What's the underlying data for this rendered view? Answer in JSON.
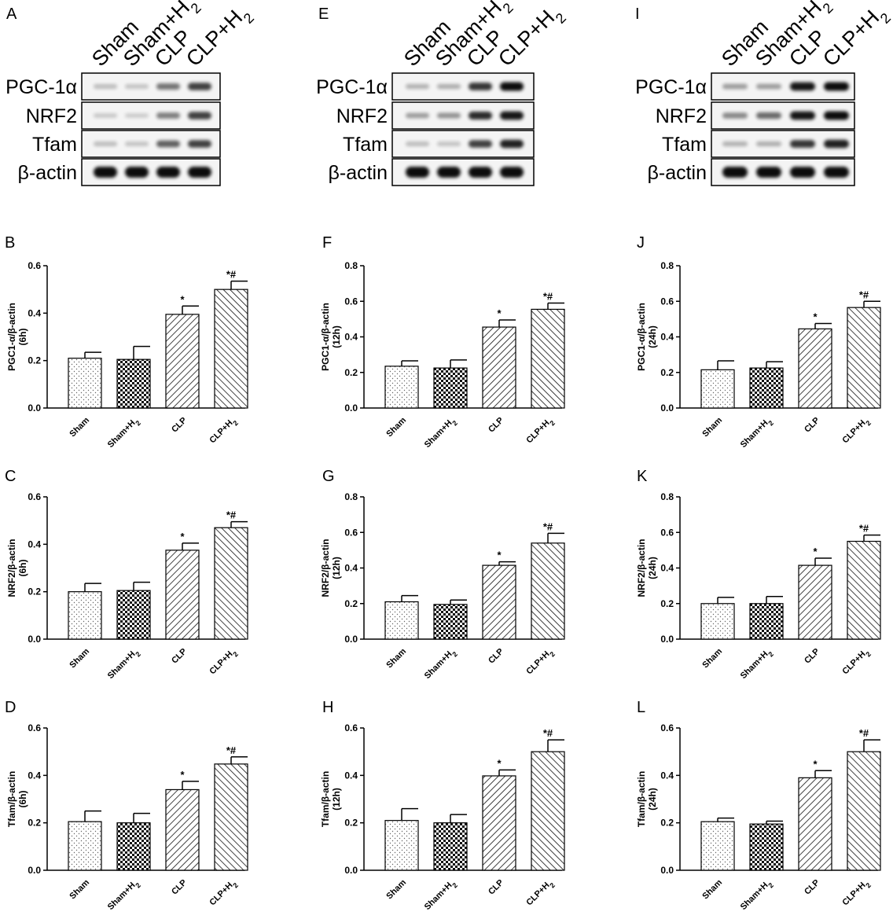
{
  "figure": {
    "blot_panels": [
      {
        "label": "A",
        "lanes": [
          "Sham",
          "Sham+H2",
          "CLP",
          "CLP+H2"
        ],
        "rows": [
          "PGC-1α",
          "NRF2",
          "Tfam",
          "β-actin"
        ],
        "band_intensity": [
          [
            0.15,
            0.12,
            0.5,
            0.75
          ],
          [
            0.1,
            0.08,
            0.45,
            0.75
          ],
          [
            0.15,
            0.12,
            0.6,
            0.75
          ],
          [
            1,
            1,
            1,
            1
          ]
        ]
      },
      {
        "label": "E",
        "lanes": [
          "Sham",
          "Sham+H2",
          "CLP",
          "CLP+H2"
        ],
        "rows": [
          "PGC-1α",
          "NRF2",
          "Tfam",
          "β-actin"
        ],
        "band_intensity": [
          [
            0.2,
            0.22,
            0.8,
            1
          ],
          [
            0.3,
            0.35,
            0.85,
            0.95
          ],
          [
            0.15,
            0.12,
            0.75,
            0.9
          ],
          [
            1,
            1,
            1,
            1
          ]
        ]
      },
      {
        "label": "I",
        "lanes": [
          "Sham",
          "Sham+H2",
          "CLP",
          "CLP+H2"
        ],
        "rows": [
          "PGC-1α",
          "NRF2",
          "Tfam",
          "β-actin"
        ],
        "band_intensity": [
          [
            0.3,
            0.3,
            0.95,
            1
          ],
          [
            0.4,
            0.55,
            0.95,
            1
          ],
          [
            0.2,
            0.22,
            0.8,
            0.9
          ],
          [
            1,
            1,
            1,
            1
          ]
        ]
      }
    ]
  },
  "chart_data": [
    {
      "panel": "B",
      "type": "bar",
      "categories": [
        "Sham",
        "Sham+H2",
        "CLP",
        "CLP+H2"
      ],
      "ylabel": "PGC1-α/β-actin (6h)",
      "ylim": [
        0,
        0.6
      ],
      "yticks": [
        "0.0",
        "0.2",
        "0.4",
        "0.6"
      ],
      "values": [
        0.21,
        0.205,
        0.395,
        0.5
      ],
      "errors": [
        0.025,
        0.055,
        0.035,
        0.035
      ],
      "significance": [
        "",
        "",
        "*",
        "*#"
      ]
    },
    {
      "panel": "C",
      "type": "bar",
      "categories": [
        "Sham",
        "Sham+H2",
        "CLP",
        "CLP+H2"
      ],
      "ylabel": "NRF2/β-actin (6h)",
      "ylim": [
        0,
        0.6
      ],
      "yticks": [
        "0.0",
        "0.2",
        "0.4",
        "0.6"
      ],
      "values": [
        0.2,
        0.205,
        0.375,
        0.47
      ],
      "errors": [
        0.035,
        0.035,
        0.03,
        0.025
      ],
      "significance": [
        "",
        "",
        "*",
        "*#"
      ]
    },
    {
      "panel": "D",
      "type": "bar",
      "categories": [
        "Sham",
        "Sham+H2",
        "CLP",
        "CLP+H2"
      ],
      "ylabel": "Tfam/β-actin (6h)",
      "ylim": [
        0,
        0.6
      ],
      "yticks": [
        "0.0",
        "0.2",
        "0.4",
        "0.6"
      ],
      "values": [
        0.205,
        0.2,
        0.34,
        0.448
      ],
      "errors": [
        0.045,
        0.04,
        0.035,
        0.03
      ],
      "significance": [
        "",
        "",
        "*",
        "*#"
      ]
    },
    {
      "panel": "F",
      "type": "bar",
      "categories": [
        "Sham",
        "Sham+H2",
        "CLP",
        "CLP+H2"
      ],
      "ylabel": "PGC1-α/β-actin (12h)",
      "ylim": [
        0,
        0.8
      ],
      "yticks": [
        "0.0",
        "0.2",
        "0.4",
        "0.6",
        "0.8"
      ],
      "values": [
        0.235,
        0.225,
        0.455,
        0.555
      ],
      "errors": [
        0.03,
        0.045,
        0.04,
        0.035
      ],
      "significance": [
        "",
        "",
        "*",
        "*#"
      ]
    },
    {
      "panel": "G",
      "type": "bar",
      "categories": [
        "Sham",
        "Sham+H2",
        "CLP",
        "CLP+H2"
      ],
      "ylabel": "NRF2/β-actin (12h)",
      "ylim": [
        0,
        0.8
      ],
      "yticks": [
        "0.0",
        "0.2",
        "0.4",
        "0.6",
        "0.8"
      ],
      "values": [
        0.21,
        0.195,
        0.415,
        0.54
      ],
      "errors": [
        0.035,
        0.025,
        0.02,
        0.055
      ],
      "significance": [
        "",
        "",
        "*",
        "*#"
      ]
    },
    {
      "panel": "H",
      "type": "bar",
      "categories": [
        "Sham",
        "Sham+H2",
        "CLP",
        "CLP+H2"
      ],
      "ylabel": "Tfam/β-actin (12h)",
      "ylim": [
        0,
        0.6
      ],
      "yticks": [
        "0.0",
        "0.2",
        "0.4",
        "0.6"
      ],
      "values": [
        0.21,
        0.2,
        0.398,
        0.5
      ],
      "errors": [
        0.05,
        0.035,
        0.025,
        0.05
      ],
      "significance": [
        "",
        "",
        "*",
        "*#"
      ]
    },
    {
      "panel": "J",
      "type": "bar",
      "categories": [
        "Sham",
        "Sham+H2",
        "CLP",
        "CLP+H2"
      ],
      "ylabel": "PGC1-α/β-actin (24h)",
      "ylim": [
        0,
        0.8
      ],
      "yticks": [
        "0.0",
        "0.2",
        "0.4",
        "0.6",
        "0.8"
      ],
      "values": [
        0.215,
        0.225,
        0.445,
        0.565
      ],
      "errors": [
        0.05,
        0.035,
        0.03,
        0.035
      ],
      "significance": [
        "",
        "",
        "*",
        "*#"
      ]
    },
    {
      "panel": "K",
      "type": "bar",
      "categories": [
        "Sham",
        "Sham+H2",
        "CLP",
        "CLP+H2"
      ],
      "ylabel": "NRF2/β-actin (24h)",
      "ylim": [
        0,
        0.8
      ],
      "yticks": [
        "0.0",
        "0.2",
        "0.4",
        "0.6",
        "0.8"
      ],
      "values": [
        0.2,
        0.2,
        0.415,
        0.55
      ],
      "errors": [
        0.035,
        0.04,
        0.04,
        0.035
      ],
      "significance": [
        "",
        "",
        "*",
        "*#"
      ]
    },
    {
      "panel": "L",
      "type": "bar",
      "categories": [
        "Sham",
        "Sham+H2",
        "CLP",
        "CLP+H2"
      ],
      "ylabel": "Tfam/β-actin (24h)",
      "ylim": [
        0,
        0.6
      ],
      "yticks": [
        "0.0",
        "0.2",
        "0.4",
        "0.6"
      ],
      "values": [
        0.205,
        0.195,
        0.39,
        0.5
      ],
      "errors": [
        0.015,
        0.012,
        0.03,
        0.05
      ],
      "significance": [
        "",
        "",
        "*",
        "*#"
      ]
    }
  ]
}
